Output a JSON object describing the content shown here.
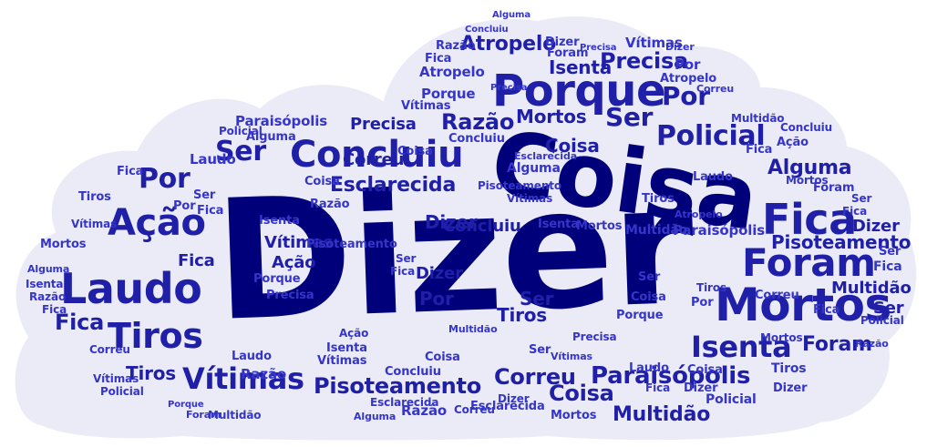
{
  "colors": {
    "background": "#ffffff",
    "cloud_fill": "#ebebf8",
    "word_dark_navy": "#00007a",
    "word_navy": "#1f1fa8",
    "word_blue": "#3535c9",
    "word_bright_blue": "#4545d2"
  },
  "words": {
    "dizer": "Dizer",
    "coisa": "Coisa",
    "porque": "Porque",
    "mortos": "Mortos",
    "laudo": "Laudo",
    "concluiu": "Concluiu",
    "fica": "Fica",
    "foram": "Foram",
    "tiros": "Tiros",
    "acao": "Ação",
    "ser": "Ser",
    "policial": "Policial",
    "isenta": "Isenta",
    "vitimas": "Vítimas",
    "paraisopolis": "Paraisópolis",
    "pisoteamento": "Pisoteamento",
    "correu": "Correu",
    "multidao": "Multidão",
    "precisa": "Precisa",
    "razao": "Razão",
    "esclarecida": "Esclarecida",
    "atropelo": "Atropelo",
    "alguma": "Alguma",
    "por": "Por"
  }
}
